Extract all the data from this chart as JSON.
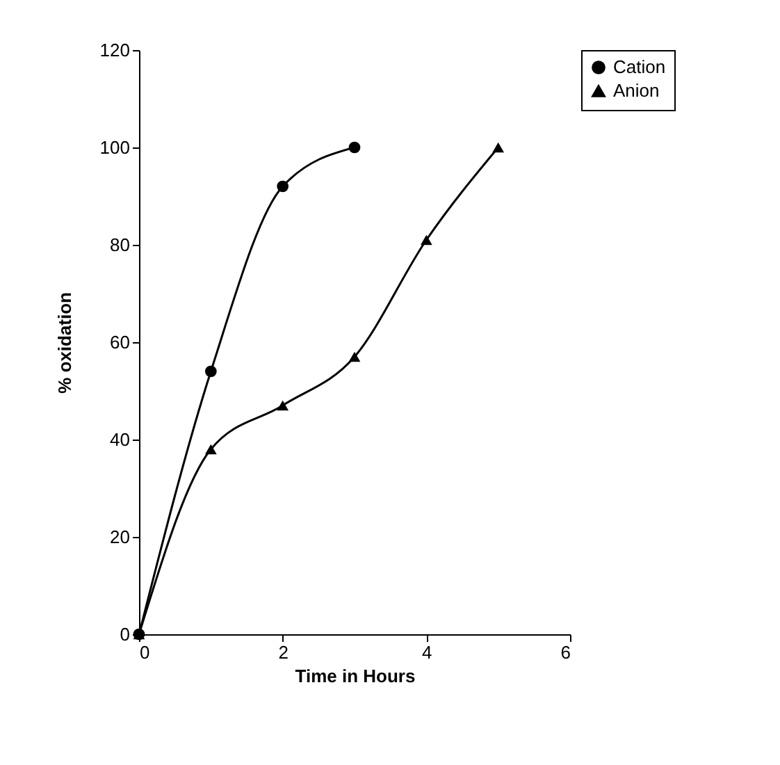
{
  "chart_data": {
    "type": "line",
    "xlabel": "Time in Hours",
    "ylabel": "% oxidation",
    "xlim": [
      0,
      6
    ],
    "xticks": [
      0,
      2,
      4,
      6
    ],
    "ylim": [
      0,
      120
    ],
    "yticks": [
      0,
      20,
      40,
      60,
      80,
      100,
      120
    ],
    "grid": false,
    "legend": "right",
    "series": [
      {
        "name": "Cation",
        "color": "#000000",
        "marker": "circle",
        "x": [
          0,
          1,
          2,
          3
        ],
        "values": [
          0,
          54,
          92,
          100
        ]
      },
      {
        "name": "Anion",
        "color": "#000000",
        "marker": "triangle",
        "x": [
          0,
          1,
          2,
          3,
          4,
          5
        ],
        "values": [
          0,
          38,
          47,
          57,
          81,
          100
        ]
      }
    ]
  }
}
